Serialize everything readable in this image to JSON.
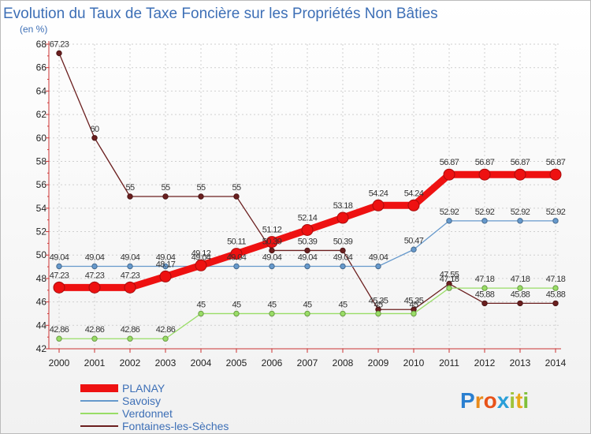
{
  "chart_data": {
    "type": "line",
    "title": "Evolution du Taux de Taxe Foncière sur les Propriétés Non Bâties",
    "subtitle": "(en %)",
    "x": [
      "2000",
      "2001",
      "2002",
      "2003",
      "2004",
      "2005",
      "2006",
      "2007",
      "2008",
      "2009",
      "2010",
      "2011",
      "2012",
      "2013",
      "2014"
    ],
    "ylim": [
      42,
      68
    ],
    "yticks": [
      42,
      44,
      46,
      48,
      50,
      52,
      54,
      56,
      58,
      60,
      62,
      64,
      66,
      68
    ],
    "legend_position": "bottom-left",
    "series": [
      {
        "name": "Fontaines-les-Sèches",
        "color": "#6b1f1f",
        "values": [
          67.23,
          60,
          55,
          55,
          55,
          55,
          50.39,
          50.39,
          50.39,
          45.35,
          45.35,
          47.55,
          45.88,
          45.88,
          45.88
        ],
        "labels": [
          "67.23",
          "60",
          "55",
          "55",
          "55",
          "55",
          "50.39",
          "50.39",
          "50.39",
          "45.35",
          "45.35",
          "47.55",
          "45.88",
          "45.88",
          "45.88"
        ]
      },
      {
        "name": "Verdonnet",
        "color": "#99dd66",
        "values": [
          42.86,
          42.86,
          42.86,
          42.86,
          45,
          45,
          45,
          45,
          45,
          45,
          45,
          47.18,
          47.18,
          47.18,
          47.18
        ],
        "labels": [
          "42.86",
          "42.86",
          "42.86",
          "42.86",
          "45",
          "45",
          "45",
          "45",
          "45",
          "45",
          "45",
          "47.18",
          "47.18",
          "47.18",
          "47.18"
        ]
      },
      {
        "name": "Savoisy",
        "color": "#6699cc",
        "values": [
          49.04,
          49.04,
          49.04,
          49.04,
          49.04,
          49.04,
          49.04,
          49.04,
          49.04,
          49.04,
          50.47,
          52.92,
          52.92,
          52.92,
          52.92
        ],
        "labels": [
          "49.04",
          "49.04",
          "49.04",
          "49.04",
          "49.04",
          "49.04",
          "49.04",
          "49.04",
          "49.04",
          "49.04",
          "50.47",
          "52.92",
          "52.92",
          "52.92",
          "52.92"
        ]
      },
      {
        "name": "PLANAY",
        "color": "#ee1111",
        "values": [
          47.23,
          47.23,
          47.23,
          48.17,
          49.12,
          50.11,
          51.12,
          52.14,
          53.18,
          54.24,
          54.24,
          56.87,
          56.87,
          56.87,
          56.87
        ],
        "labels": [
          "47.23",
          "47.23",
          "47.23",
          "48.17",
          "49.12",
          "50.11",
          "51.12",
          "52.14",
          "53.18",
          "54.24",
          "54.24",
          "56.87",
          "56.87",
          "56.87",
          "56.87"
        ]
      }
    ],
    "legend_order": [
      "PLANAY",
      "Savoisy",
      "Verdonnet",
      "Fontaines-les-Sèches"
    ]
  },
  "logo": {
    "letters": [
      "P",
      "r",
      "o",
      "x",
      "i",
      "t",
      "i"
    ],
    "colors": [
      "#2a7fd0",
      "#e88a1a",
      "#e8531a",
      "#2a9fd8",
      "#9fc33a",
      "#e8a81a",
      "#7fc03a"
    ]
  }
}
